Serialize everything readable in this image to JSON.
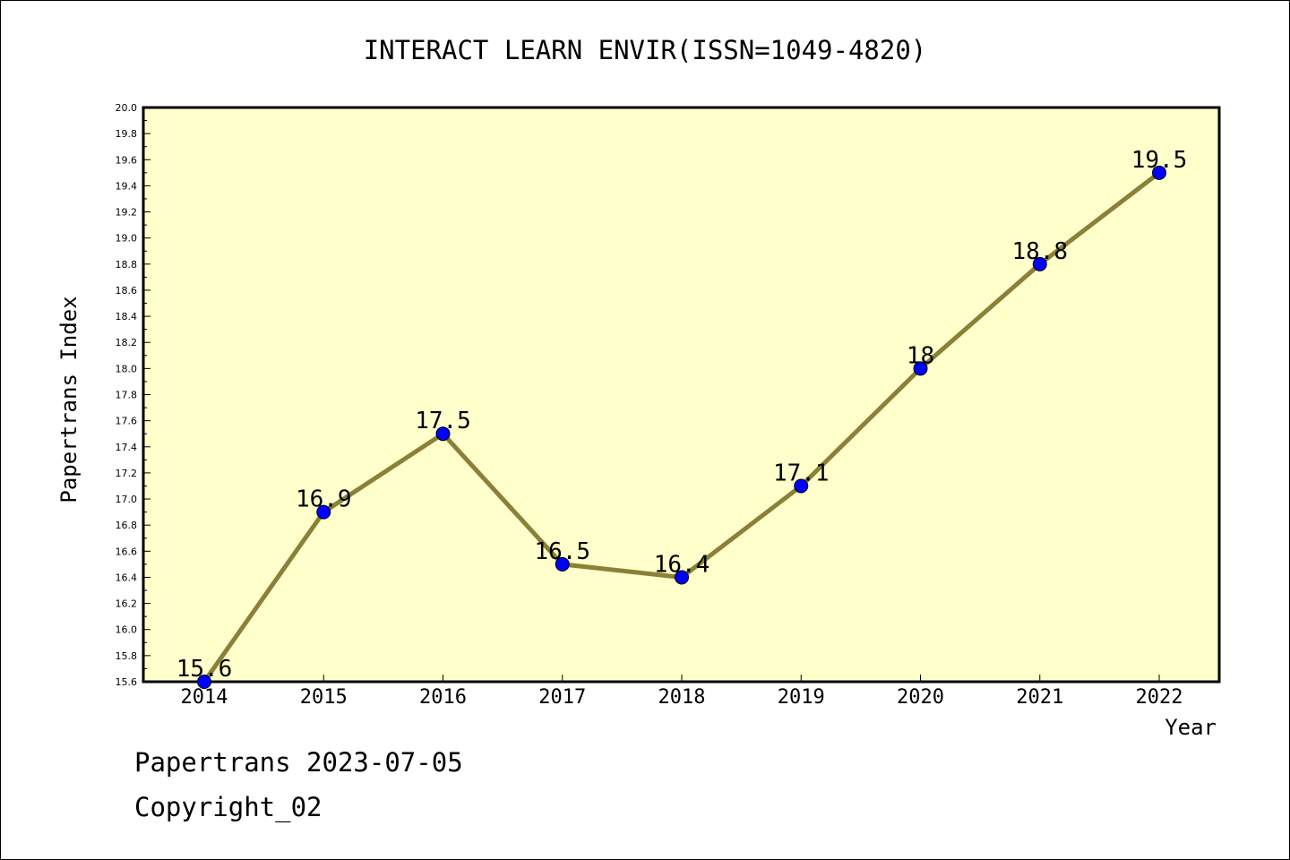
{
  "chart_data": {
    "type": "line",
    "title": "INTERACT LEARN ENVIR(ISSN=1049-4820)",
    "xlabel": "Year",
    "ylabel": "Papertrans Index",
    "x": [
      "2014",
      "2015",
      "2016",
      "2017",
      "2018",
      "2019",
      "2020",
      "2021",
      "2022"
    ],
    "values": [
      15.6,
      16.9,
      17.5,
      16.5,
      16.4,
      17.1,
      18,
      18.8,
      19.5
    ],
    "point_labels": [
      "15.6",
      "16.9",
      "17.5",
      "16.5",
      "16.4",
      "17.1",
      "18",
      "18.8",
      "19.5"
    ],
    "ylim": [
      15.6,
      20.0
    ],
    "y_ticks": [
      "15.6",
      "15.8",
      "16.0",
      "16.2",
      "16.4",
      "16.6",
      "16.8",
      "17.0",
      "17.2",
      "17.4",
      "17.6",
      "17.8",
      "18.0",
      "18.2",
      "18.4",
      "18.6",
      "18.8",
      "19.0",
      "19.2",
      "19.4",
      "19.6",
      "19.8",
      "20.0"
    ],
    "grid": false,
    "legend": "none",
    "colors": {
      "plot_background": "#ffffcc",
      "line": "#8b8038",
      "marker": "#0000ff"
    }
  },
  "footer": {
    "stamp": "Papertrans 2023-07-05",
    "copyright": "Copyright_02"
  }
}
